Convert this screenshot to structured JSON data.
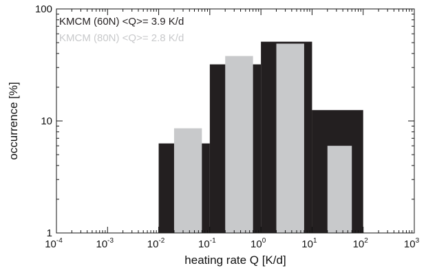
{
  "chart_data": {
    "type": "bar",
    "xscale": "log",
    "yscale": "log",
    "xlim": [
      0.0001,
      1000
    ],
    "ylim": [
      1,
      100
    ],
    "xlabel": "heating rate Q [K/d]",
    "ylabel": "occurrence [%]",
    "x_ticks": [
      {
        "base": "10",
        "exp": "-4",
        "value": 0.0001
      },
      {
        "base": "10",
        "exp": "-3",
        "value": 0.001
      },
      {
        "base": "10",
        "exp": "-2",
        "value": 0.01
      },
      {
        "base": "10",
        "exp": "-1",
        "value": 0.1
      },
      {
        "base": "10",
        "exp": "0",
        "value": 1
      },
      {
        "base": "10",
        "exp": "1",
        "value": 10
      },
      {
        "base": "10",
        "exp": "2",
        "value": 100
      },
      {
        "base": "10",
        "exp": "3",
        "value": 1000
      }
    ],
    "y_ticks": [
      {
        "label": "1",
        "value": 1
      },
      {
        "label": "10",
        "value": 10
      },
      {
        "label": "100",
        "value": 100
      }
    ],
    "series": [
      {
        "name": "KMCM (60N) <Q>= 3.9 K/d",
        "color": "#231f20",
        "bins": [
          {
            "x0": 0.01,
            "x1": 0.1,
            "value": 6.3
          },
          {
            "x0": 0.1,
            "x1": 1,
            "value": 32
          },
          {
            "x0": 1,
            "x1": 10,
            "value": 51
          },
          {
            "x0": 10,
            "x1": 100,
            "value": 12.5
          }
        ]
      },
      {
        "name": "KMCM (80N) <Q>= 2.8 K/d",
        "color": "#c8c9cb",
        "bins": [
          {
            "x0": 0.02,
            "x1": 0.07,
            "value": 8.6
          },
          {
            "x0": 0.2,
            "x1": 0.7,
            "value": 38
          },
          {
            "x0": 2,
            "x1": 7,
            "value": 49
          },
          {
            "x0": 20,
            "x1": 60,
            "value": 6.0
          }
        ]
      }
    ],
    "legend_position": "top-left",
    "grid": false
  }
}
